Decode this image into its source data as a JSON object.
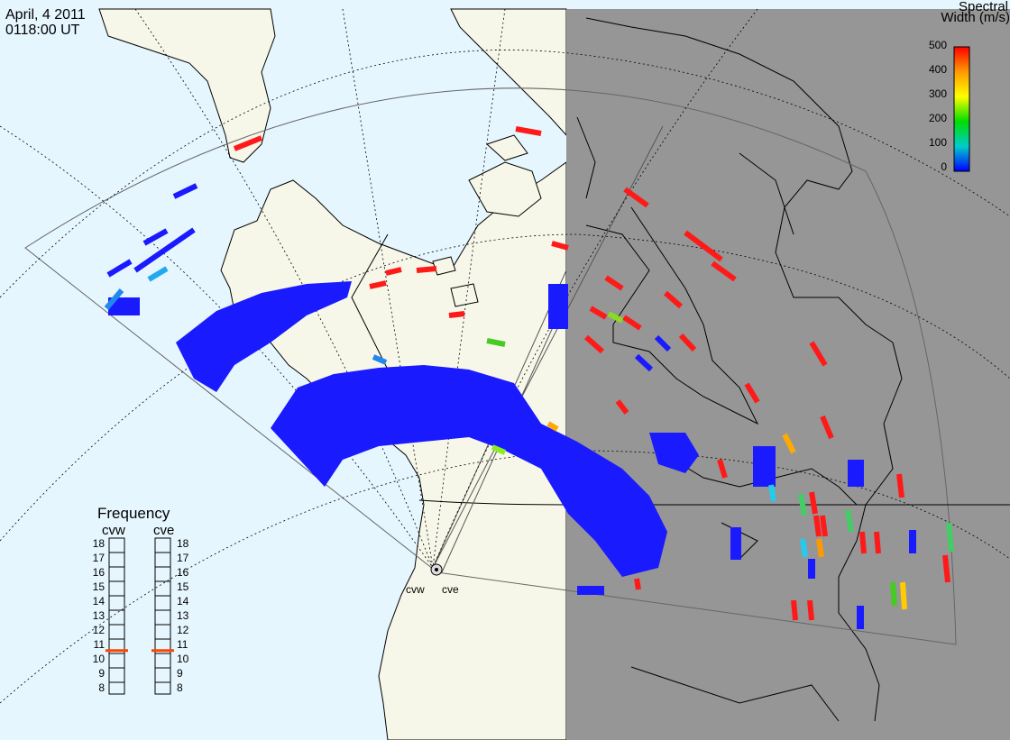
{
  "header": {
    "date": "April, 4 2011",
    "time": "0118:00 UT"
  },
  "colorbar": {
    "title_line1": "Spectral",
    "title_line2": "Width (m/s)",
    "ticks": [
      "500",
      "400",
      "300",
      "200",
      "100",
      "0"
    ],
    "colors": [
      "#ff0000",
      "#ff9900",
      "#ffff00",
      "#00dd00",
      "#00cccc",
      "#0000ff"
    ]
  },
  "frequency": {
    "title": "Frequency",
    "radars": [
      "cvw",
      "cve"
    ],
    "ticks": [
      "18",
      "17",
      "16",
      "15",
      "14",
      "13",
      "12",
      "11",
      "10",
      "9",
      "8"
    ],
    "cvw_selected_mhz": 10.7,
    "cve_selected_mhz": 10.7,
    "marker_color": "#ff4400"
  },
  "sites": {
    "west": "cvw",
    "east": "cve"
  },
  "colors": {
    "ocean": "#e6f6fe",
    "land_day": "#f7f7e9",
    "night": "#969696",
    "scatter_blue": "#1a1aff",
    "scatter_red": "#ff1a1a"
  }
}
